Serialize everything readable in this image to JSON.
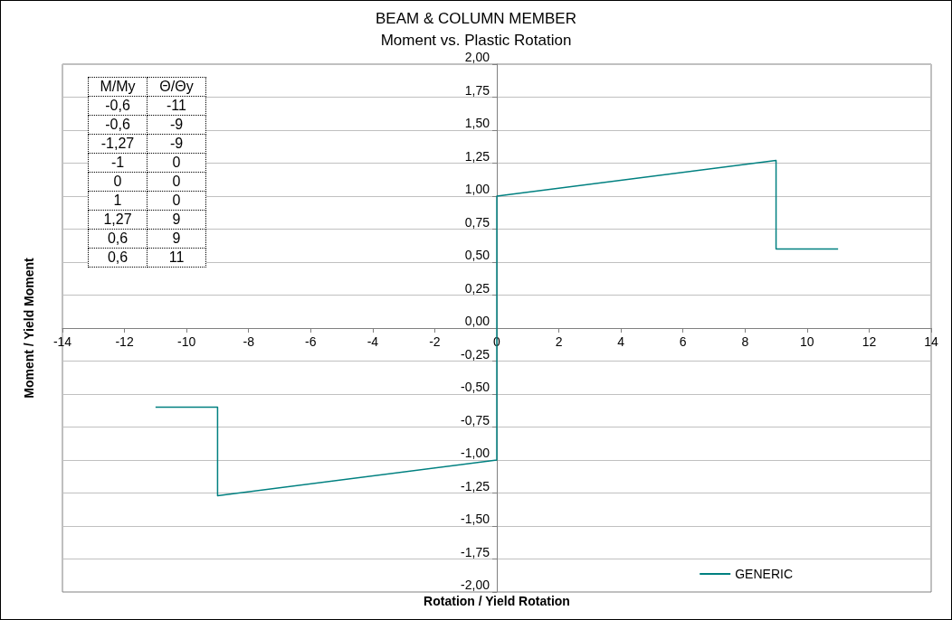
{
  "chart_data": [
    {
      "type": "line",
      "title": "BEAM & COLUMN MEMBER",
      "subtitle": "Moment vs. Plastic Rotation",
      "xlabel": "Rotation / Yield Rotation",
      "ylabel": "Moment / Yield Moment",
      "x": [
        -11,
        -9,
        -9,
        0,
        0,
        0,
        9,
        9,
        11
      ],
      "series": [
        {
          "name": "GENERIC",
          "color": "#008080",
          "values": [
            -0.6,
            -0.6,
            -1.27,
            -1,
            0,
            1,
            1.27,
            0.6,
            0.6
          ]
        }
      ],
      "xlim": [
        -14,
        14
      ],
      "xticks": [
        -14,
        -12,
        -10,
        -8,
        -6,
        -4,
        -2,
        0,
        2,
        4,
        6,
        8,
        10,
        12,
        14
      ],
      "ylim": [
        -2,
        2
      ],
      "yticks": [
        {
          "value": -2,
          "label": "-2,00"
        },
        {
          "value": -1.75,
          "label": "-1,75"
        },
        {
          "value": -1.5,
          "label": "-1,50"
        },
        {
          "value": -1.25,
          "label": "-1,25"
        },
        {
          "value": -1,
          "label": "-1,00"
        },
        {
          "value": -0.75,
          "label": "-0,75"
        },
        {
          "value": -0.5,
          "label": "-0,50"
        },
        {
          "value": -0.25,
          "label": "-0,25"
        },
        {
          "value": 0,
          "label": "0,00"
        },
        {
          "value": 0.25,
          "label": "0,25"
        },
        {
          "value": 0.5,
          "label": "0,50"
        },
        {
          "value": 0.75,
          "label": "0,75"
        },
        {
          "value": 1,
          "label": "1,00"
        },
        {
          "value": 1.25,
          "label": "1,25"
        },
        {
          "value": 1.5,
          "label": "1,50"
        },
        {
          "value": 1.75,
          "label": "1,75"
        },
        {
          "value": 2,
          "label": "2,00"
        }
      ],
      "grid": "y",
      "legend": "bottom right",
      "marker": "none",
      "line_style": "solid"
    },
    {
      "type": "other",
      "annotations": [
        "M/My",
        "Θ/Θy",
        "-0,6",
        "-11",
        "-0,6",
        "-9",
        "-1,27",
        "-9",
        "-1",
        "0",
        "0",
        "0",
        "1",
        "0",
        "1,27",
        "9",
        "0,6",
        "9",
        "0,6",
        "11"
      ]
    }
  ]
}
